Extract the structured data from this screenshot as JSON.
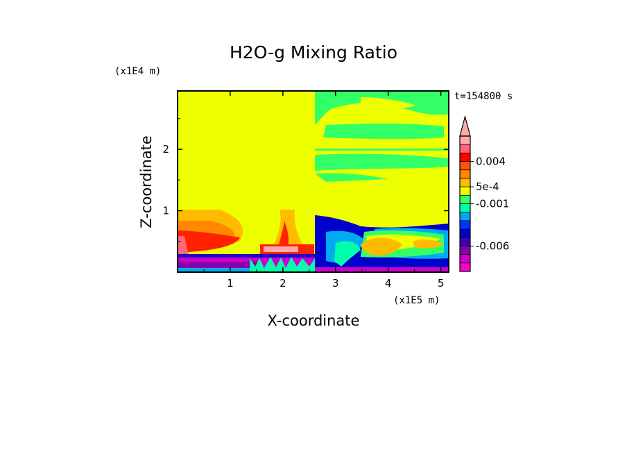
{
  "chart_data": {
    "type": "heatmap",
    "title": "H2O-g Mixing Ratio",
    "xlabel": "X-coordinate",
    "ylabel": "Z-coordinate",
    "x_scale_label": "(x1E5 m)",
    "y_scale_label": "(x1E4 m)",
    "time_label": "t=154800 s",
    "xlim": [
      0,
      5.15
    ],
    "ylim": [
      0,
      2.95
    ],
    "x_ticks": [
      1,
      2,
      3,
      4,
      5
    ],
    "y_ticks": [
      1,
      2
    ],
    "grid": false,
    "legend": "colorbar-right",
    "colorbar": {
      "colors": [
        "#ff00cc",
        "#cc00cc",
        "#8800aa",
        "#4400aa",
        "#0000cc",
        "#0033ff",
        "#00aaee",
        "#00ffaa",
        "#33ff66",
        "#eeff00",
        "#ffbb00",
        "#ff8800",
        "#ff5500",
        "#ff0000",
        "#ff6677",
        "#ffaaaa"
      ],
      "labels": [
        {
          "text": "0.004",
          "index": 13
        },
        {
          "text": "5e-4",
          "index": 10
        },
        {
          "text": "-0.001",
          "index": 8
        },
        {
          "text": "-0.006",
          "index": 3
        }
      ]
    }
  }
}
